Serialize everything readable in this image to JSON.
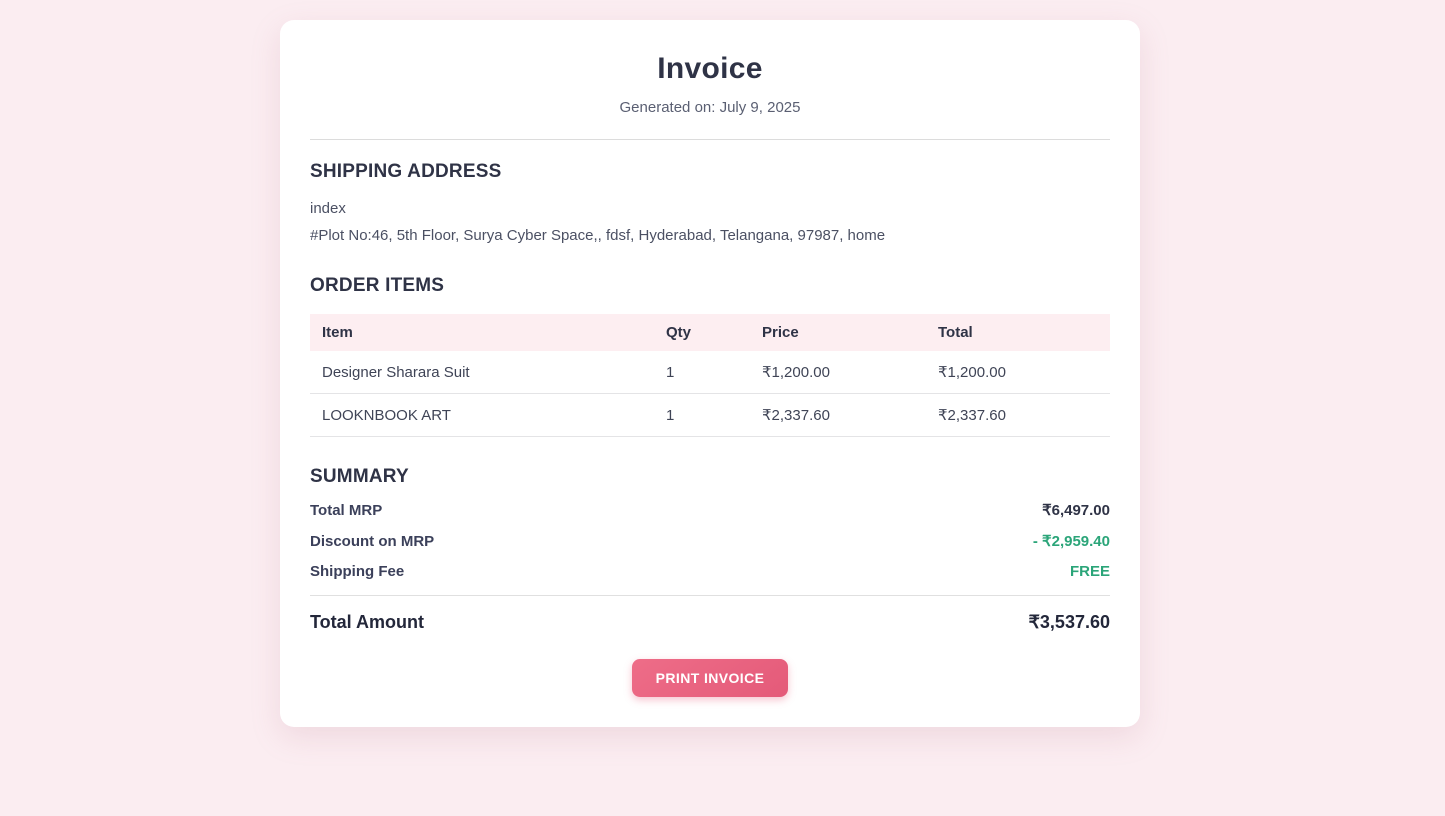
{
  "page": {
    "title": "Invoice",
    "generated_on": "Generated on: July 9, 2025"
  },
  "shipping": {
    "heading": "SHIPPING ADDRESS",
    "name": "index",
    "address": "#Plot No:46, 5th Floor, Surya Cyber Space,, fdsf, Hyderabad, Telangana, 97987, home"
  },
  "order": {
    "heading": "ORDER ITEMS",
    "columns": [
      "Item",
      "Qty",
      "Price",
      "Total"
    ],
    "rows": [
      {
        "item": "Designer Sharara Suit",
        "qty": "1",
        "price": "₹1,200.00",
        "total": "₹1,200.00"
      },
      {
        "item": "LOOKNBOOK ART",
        "qty": "1",
        "price": "₹2,337.60",
        "total": "₹2,337.60"
      }
    ]
  },
  "summary": {
    "heading": "SUMMARY",
    "rows": [
      {
        "label": "Total MRP",
        "value": "₹6,497.00",
        "color": "dark"
      },
      {
        "label": "Discount on MRP",
        "value": "- ₹2,959.40",
        "color": "green"
      },
      {
        "label": "Shipping Fee",
        "value": "FREE",
        "color": "green"
      }
    ],
    "total_label": "Total Amount",
    "total_value": "₹3,537.60"
  },
  "actions": {
    "print_label": "PRINT INVOICE"
  },
  "colors": {
    "page_bg": "#fbedf1",
    "card_bg": "#ffffff",
    "text_dark": "#2f3346",
    "text_muted": "#4b5063",
    "table_header_bg": "#fdeef1",
    "green": "#2ba579",
    "accent_pink": "#e85f7d"
  }
}
